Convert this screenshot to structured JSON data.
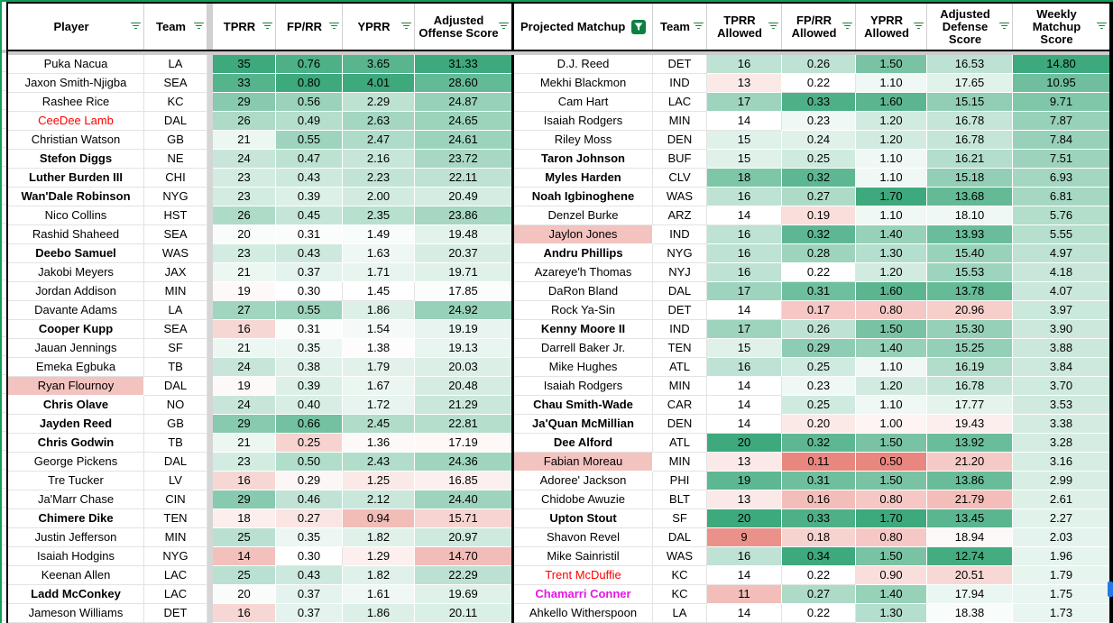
{
  "colors": {
    "scale_green": "#3da97c",
    "scale_red": "#e67c73",
    "name_highlight": "#f3c3c0",
    "red_text": "#ff0000",
    "magenta_text": "#e517e5",
    "filter_icon_green": "#188038",
    "active_filter_bg": "#0b8043",
    "outer_frame_green": "#0f9d58"
  },
  "left_table": {
    "columns": [
      {
        "label": "Player"
      },
      {
        "label": "Team"
      },
      {
        "label": "TPRR"
      },
      {
        "label": "FP/RR"
      },
      {
        "label": "YPRR"
      },
      {
        "label": "Adjusted Offense Score"
      }
    ],
    "fields": [
      {
        "key": "player",
        "type": "name"
      },
      {
        "key": "team",
        "type": "team"
      },
      {
        "type": "sep"
      },
      {
        "key": "tprr",
        "scale": "l_tprr"
      },
      {
        "key": "fprr",
        "scale": "l_fprr"
      },
      {
        "key": "yprr",
        "scale": "l_yprr"
      },
      {
        "key": "adj_offense_score",
        "scale": "l_adj",
        "last": true
      }
    ],
    "rows": [
      {
        "player": "Puka Nacua",
        "team": "LA",
        "tprr": "35",
        "fprr": "0.76",
        "yprr": "3.65",
        "adj_offense_score": "31.33",
        "style": ""
      },
      {
        "player": "Jaxon Smith-Njigba",
        "team": "SEA",
        "tprr": "33",
        "fprr": "0.80",
        "yprr": "4.01",
        "adj_offense_score": "28.60",
        "style": ""
      },
      {
        "player": "Rashee Rice",
        "team": "KC",
        "tprr": "29",
        "fprr": "0.56",
        "yprr": "2.29",
        "adj_offense_score": "24.87",
        "style": ""
      },
      {
        "player": "CeeDee Lamb",
        "team": "DAL",
        "tprr": "26",
        "fprr": "0.49",
        "yprr": "2.63",
        "adj_offense_score": "24.65",
        "style": "red"
      },
      {
        "player": "Christian Watson",
        "team": "GB",
        "tprr": "21",
        "fprr": "0.55",
        "yprr": "2.47",
        "adj_offense_score": "24.61",
        "style": ""
      },
      {
        "player": "Stefon Diggs",
        "team": "NE",
        "tprr": "24",
        "fprr": "0.47",
        "yprr": "2.16",
        "adj_offense_score": "23.72",
        "style": "bold"
      },
      {
        "player": "Luther Burden III",
        "team": "CHI",
        "tprr": "23",
        "fprr": "0.43",
        "yprr": "2.23",
        "adj_offense_score": "22.11",
        "style": "bold"
      },
      {
        "player": "Wan'Dale Robinson",
        "team": "NYG",
        "tprr": "23",
        "fprr": "0.39",
        "yprr": "2.00",
        "adj_offense_score": "20.49",
        "style": "bold"
      },
      {
        "player": "Nico Collins",
        "team": "HST",
        "tprr": "26",
        "fprr": "0.45",
        "yprr": "2.35",
        "adj_offense_score": "23.86",
        "style": ""
      },
      {
        "player": "Rashid Shaheed",
        "team": "SEA",
        "tprr": "20",
        "fprr": "0.31",
        "yprr": "1.49",
        "adj_offense_score": "19.48",
        "style": ""
      },
      {
        "player": "Deebo Samuel",
        "team": "WAS",
        "tprr": "23",
        "fprr": "0.43",
        "yprr": "1.63",
        "adj_offense_score": "20.37",
        "style": "bold"
      },
      {
        "player": "Jakobi Meyers",
        "team": "JAX",
        "tprr": "21",
        "fprr": "0.37",
        "yprr": "1.71",
        "adj_offense_score": "19.71",
        "style": ""
      },
      {
        "player": "Jordan Addison",
        "team": "MIN",
        "tprr": "19",
        "fprr": "0.30",
        "yprr": "1.45",
        "adj_offense_score": "17.85",
        "style": ""
      },
      {
        "player": "Davante Adams",
        "team": "LA",
        "tprr": "27",
        "fprr": "0.55",
        "yprr": "1.86",
        "adj_offense_score": "24.92",
        "style": ""
      },
      {
        "player": "Cooper Kupp",
        "team": "SEA",
        "tprr": "16",
        "fprr": "0.31",
        "yprr": "1.54",
        "adj_offense_score": "19.19",
        "style": "bold"
      },
      {
        "player": "Jauan Jennings",
        "team": "SF",
        "tprr": "21",
        "fprr": "0.35",
        "yprr": "1.38",
        "adj_offense_score": "19.13",
        "style": ""
      },
      {
        "player": "Emeka Egbuka",
        "team": "TB",
        "tprr": "24",
        "fprr": "0.38",
        "yprr": "1.79",
        "adj_offense_score": "20.03",
        "style": ""
      },
      {
        "player": "Ryan Flournoy",
        "team": "DAL",
        "tprr": "19",
        "fprr": "0.39",
        "yprr": "1.67",
        "adj_offense_score": "20.48",
        "style": "highlight"
      },
      {
        "player": "Chris Olave",
        "team": "NO",
        "tprr": "24",
        "fprr": "0.40",
        "yprr": "1.72",
        "adj_offense_score": "21.29",
        "style": "bold"
      },
      {
        "player": "Jayden Reed",
        "team": "GB",
        "tprr": "29",
        "fprr": "0.66",
        "yprr": "2.45",
        "adj_offense_score": "22.81",
        "style": "bold"
      },
      {
        "player": "Chris Godwin",
        "team": "TB",
        "tprr": "21",
        "fprr": "0.25",
        "yprr": "1.36",
        "adj_offense_score": "17.19",
        "style": "bold"
      },
      {
        "player": "George Pickens",
        "team": "DAL",
        "tprr": "23",
        "fprr": "0.50",
        "yprr": "2.43",
        "adj_offense_score": "24.36",
        "style": ""
      },
      {
        "player": "Tre Tucker",
        "team": "LV",
        "tprr": "16",
        "fprr": "0.29",
        "yprr": "1.25",
        "adj_offense_score": "16.85",
        "style": ""
      },
      {
        "player": "Ja'Marr Chase",
        "team": "CIN",
        "tprr": "29",
        "fprr": "0.46",
        "yprr": "2.12",
        "adj_offense_score": "24.40",
        "style": ""
      },
      {
        "player": "Chimere Dike",
        "team": "TEN",
        "tprr": "18",
        "fprr": "0.27",
        "yprr": "0.94",
        "adj_offense_score": "15.71",
        "style": "bold"
      },
      {
        "player": "Justin Jefferson",
        "team": "MIN",
        "tprr": "25",
        "fprr": "0.35",
        "yprr": "1.82",
        "adj_offense_score": "20.97",
        "style": ""
      },
      {
        "player": "Isaiah Hodgins",
        "team": "NYG",
        "tprr": "14",
        "fprr": "0.30",
        "yprr": "1.29",
        "adj_offense_score": "14.70",
        "style": ""
      },
      {
        "player": "Keenan Allen",
        "team": "LAC",
        "tprr": "25",
        "fprr": "0.43",
        "yprr": "1.82",
        "adj_offense_score": "22.29",
        "style": ""
      },
      {
        "player": "Ladd McConkey",
        "team": "LAC",
        "tprr": "20",
        "fprr": "0.37",
        "yprr": "1.61",
        "adj_offense_score": "19.69",
        "style": "bold"
      },
      {
        "player": "Jameson Williams",
        "team": "DET",
        "tprr": "16",
        "fprr": "0.37",
        "yprr": "1.86",
        "adj_offense_score": "20.11",
        "style": ""
      }
    ]
  },
  "right_table": {
    "columns": [
      {
        "label": "Projected Matchup"
      },
      {
        "label": "Team"
      },
      {
        "label": "TPRR Allowed"
      },
      {
        "label": "FP/RR Allowed"
      },
      {
        "label": "YPRR Allowed"
      },
      {
        "label": "Adjusted Defense Score"
      },
      {
        "label": "Weekly Matchup Score"
      }
    ],
    "fields": [
      {
        "key": "matchup",
        "type": "name"
      },
      {
        "key": "team",
        "type": "team"
      },
      {
        "key": "tprr_allowed",
        "scale": "r_tprr"
      },
      {
        "key": "fprr_allowed",
        "scale": "r_fprr"
      },
      {
        "key": "yprr_allowed",
        "scale": "r_yprr"
      },
      {
        "key": "adj_defense_score",
        "scale": "r_def"
      },
      {
        "key": "weekly_matchup_score",
        "scale": "r_weekly",
        "last": true
      }
    ],
    "rows": [
      {
        "matchup": "D.J. Reed",
        "team": "DET",
        "tprr_allowed": "16",
        "fprr_allowed": "0.26",
        "yprr_allowed": "1.50",
        "adj_defense_score": "16.53",
        "weekly_matchup_score": "14.80",
        "style": ""
      },
      {
        "matchup": "Mekhi Blackmon",
        "team": "IND",
        "tprr_allowed": "13",
        "fprr_allowed": "0.22",
        "yprr_allowed": "1.10",
        "adj_defense_score": "17.65",
        "weekly_matchup_score": "10.95",
        "style": ""
      },
      {
        "matchup": "Cam Hart",
        "team": "LAC",
        "tprr_allowed": "17",
        "fprr_allowed": "0.33",
        "yprr_allowed": "1.60",
        "adj_defense_score": "15.15",
        "weekly_matchup_score": "9.71",
        "style": ""
      },
      {
        "matchup": "Isaiah Rodgers",
        "team": "MIN",
        "tprr_allowed": "14",
        "fprr_allowed": "0.23",
        "yprr_allowed": "1.20",
        "adj_defense_score": "16.78",
        "weekly_matchup_score": "7.87",
        "style": ""
      },
      {
        "matchup": "Riley Moss",
        "team": "DEN",
        "tprr_allowed": "15",
        "fprr_allowed": "0.24",
        "yprr_allowed": "1.20",
        "adj_defense_score": "16.78",
        "weekly_matchup_score": "7.84",
        "style": ""
      },
      {
        "matchup": "Taron Johnson",
        "team": "BUF",
        "tprr_allowed": "15",
        "fprr_allowed": "0.25",
        "yprr_allowed": "1.10",
        "adj_defense_score": "16.21",
        "weekly_matchup_score": "7.51",
        "style": "bold"
      },
      {
        "matchup": "Myles Harden",
        "team": "CLV",
        "tprr_allowed": "18",
        "fprr_allowed": "0.32",
        "yprr_allowed": "1.10",
        "adj_defense_score": "15.18",
        "weekly_matchup_score": "6.93",
        "style": "bold"
      },
      {
        "matchup": "Noah Igbinoghene",
        "team": "WAS",
        "tprr_allowed": "16",
        "fprr_allowed": "0.27",
        "yprr_allowed": "1.70",
        "adj_defense_score": "13.68",
        "weekly_matchup_score": "6.81",
        "style": "bold"
      },
      {
        "matchup": "Denzel Burke",
        "team": "ARZ",
        "tprr_allowed": "14",
        "fprr_allowed": "0.19",
        "yprr_allowed": "1.10",
        "adj_defense_score": "18.10",
        "weekly_matchup_score": "5.76",
        "style": ""
      },
      {
        "matchup": "Jaylon Jones",
        "team": "IND",
        "tprr_allowed": "16",
        "fprr_allowed": "0.32",
        "yprr_allowed": "1.40",
        "adj_defense_score": "13.93",
        "weekly_matchup_score": "5.55",
        "style": "highlight"
      },
      {
        "matchup": "Andru Phillips",
        "team": "NYG",
        "tprr_allowed": "16",
        "fprr_allowed": "0.28",
        "yprr_allowed": "1.30",
        "adj_defense_score": "15.40",
        "weekly_matchup_score": "4.97",
        "style": "bold"
      },
      {
        "matchup": "Azareye'h Thomas",
        "team": "NYJ",
        "tprr_allowed": "16",
        "fprr_allowed": "0.22",
        "yprr_allowed": "1.20",
        "adj_defense_score": "15.53",
        "weekly_matchup_score": "4.18",
        "style": ""
      },
      {
        "matchup": "DaRon Bland",
        "team": "DAL",
        "tprr_allowed": "17",
        "fprr_allowed": "0.31",
        "yprr_allowed": "1.60",
        "adj_defense_score": "13.78",
        "weekly_matchup_score": "4.07",
        "style": ""
      },
      {
        "matchup": "Rock Ya-Sin",
        "team": "DET",
        "tprr_allowed": "14",
        "fprr_allowed": "0.17",
        "yprr_allowed": "0.80",
        "adj_defense_score": "20.96",
        "weekly_matchup_score": "3.97",
        "style": ""
      },
      {
        "matchup": "Kenny Moore II",
        "team": "IND",
        "tprr_allowed": "17",
        "fprr_allowed": "0.26",
        "yprr_allowed": "1.50",
        "adj_defense_score": "15.30",
        "weekly_matchup_score": "3.90",
        "style": "bold"
      },
      {
        "matchup": "Darrell Baker Jr.",
        "team": "TEN",
        "tprr_allowed": "15",
        "fprr_allowed": "0.29",
        "yprr_allowed": "1.40",
        "adj_defense_score": "15.25",
        "weekly_matchup_score": "3.88",
        "style": ""
      },
      {
        "matchup": "Mike Hughes",
        "team": "ATL",
        "tprr_allowed": "16",
        "fprr_allowed": "0.25",
        "yprr_allowed": "1.10",
        "adj_defense_score": "16.19",
        "weekly_matchup_score": "3.84",
        "style": ""
      },
      {
        "matchup": "Isaiah Rodgers",
        "team": "MIN",
        "tprr_allowed": "14",
        "fprr_allowed": "0.23",
        "yprr_allowed": "1.20",
        "adj_defense_score": "16.78",
        "weekly_matchup_score": "3.70",
        "style": ""
      },
      {
        "matchup": "Chau Smith-Wade",
        "team": "CAR",
        "tprr_allowed": "14",
        "fprr_allowed": "0.25",
        "yprr_allowed": "1.10",
        "adj_defense_score": "17.77",
        "weekly_matchup_score": "3.53",
        "style": "bold"
      },
      {
        "matchup": "Ja'Quan McMillian",
        "team": "DEN",
        "tprr_allowed": "14",
        "fprr_allowed": "0.20",
        "yprr_allowed": "1.00",
        "adj_defense_score": "19.43",
        "weekly_matchup_score": "3.38",
        "style": "bold"
      },
      {
        "matchup": "Dee Alford",
        "team": "ATL",
        "tprr_allowed": "20",
        "fprr_allowed": "0.32",
        "yprr_allowed": "1.50",
        "adj_defense_score": "13.92",
        "weekly_matchup_score": "3.28",
        "style": "bold"
      },
      {
        "matchup": "Fabian Moreau",
        "team": "MIN",
        "tprr_allowed": "13",
        "fprr_allowed": "0.11",
        "yprr_allowed": "0.50",
        "adj_defense_score": "21.20",
        "weekly_matchup_score": "3.16",
        "style": "highlight"
      },
      {
        "matchup": "Adoree' Jackson",
        "team": "PHI",
        "tprr_allowed": "19",
        "fprr_allowed": "0.31",
        "yprr_allowed": "1.50",
        "adj_defense_score": "13.86",
        "weekly_matchup_score": "2.99",
        "style": ""
      },
      {
        "matchup": "Chidobe Awuzie",
        "team": "BLT",
        "tprr_allowed": "13",
        "fprr_allowed": "0.16",
        "yprr_allowed": "0.80",
        "adj_defense_score": "21.79",
        "weekly_matchup_score": "2.61",
        "style": ""
      },
      {
        "matchup": "Upton Stout",
        "team": "SF",
        "tprr_allowed": "20",
        "fprr_allowed": "0.33",
        "yprr_allowed": "1.70",
        "adj_defense_score": "13.45",
        "weekly_matchup_score": "2.27",
        "style": "bold"
      },
      {
        "matchup": "Shavon Revel",
        "team": "DAL",
        "tprr_allowed": "9",
        "fprr_allowed": "0.18",
        "yprr_allowed": "0.80",
        "adj_defense_score": "18.94",
        "weekly_matchup_score": "2.03",
        "style": ""
      },
      {
        "matchup": "Mike Sainristil",
        "team": "WAS",
        "tprr_allowed": "16",
        "fprr_allowed": "0.34",
        "yprr_allowed": "1.50",
        "adj_defense_score": "12.74",
        "weekly_matchup_score": "1.96",
        "style": ""
      },
      {
        "matchup": "Trent McDuffie",
        "team": "KC",
        "tprr_allowed": "14",
        "fprr_allowed": "0.22",
        "yprr_allowed": "0.90",
        "adj_defense_score": "20.51",
        "weekly_matchup_score": "1.79",
        "style": "red"
      },
      {
        "matchup": "Chamarri Conner",
        "team": "KC",
        "tprr_allowed": "11",
        "fprr_allowed": "0.27",
        "yprr_allowed": "1.40",
        "adj_defense_score": "17.94",
        "weekly_matchup_score": "1.75",
        "style": "magenta"
      },
      {
        "matchup": "Ahkello Witherspoon",
        "team": "LA",
        "tprr_allowed": "14",
        "fprr_allowed": "0.22",
        "yprr_allowed": "1.30",
        "adj_defense_score": "18.38",
        "weekly_matchup_score": "1.73",
        "style": ""
      }
    ]
  },
  "color_scales": {
    "l_tprr": {
      "white": 19.5,
      "green_end": 35.0,
      "red_end": 8.0
    },
    "l_fprr": {
      "white": 0.3,
      "green_end": 0.8,
      "red_end": 0.15
    },
    "l_yprr": {
      "white": 1.4,
      "green_end": 4.01,
      "red_end": 0.5
    },
    "l_adj": {
      "white": 17.5,
      "green_end": 31.33,
      "red_end": 12.0
    },
    "r_tprr": {
      "white": 14.0,
      "green_end": 20.0,
      "red_end": 8.0
    },
    "r_fprr": {
      "white": 0.22,
      "green_end": 0.34,
      "red_end": 0.1
    },
    "r_yprr": {
      "white": 1.05,
      "green_end": 1.7,
      "red_end": 0.45
    },
    "r_def": {
      "white": 18.6,
      "green_end": 12.5,
      "red_end": 25.0,
      "invert": true
    },
    "r_weekly": {
      "mode": "zero",
      "max": 14.8
    }
  }
}
